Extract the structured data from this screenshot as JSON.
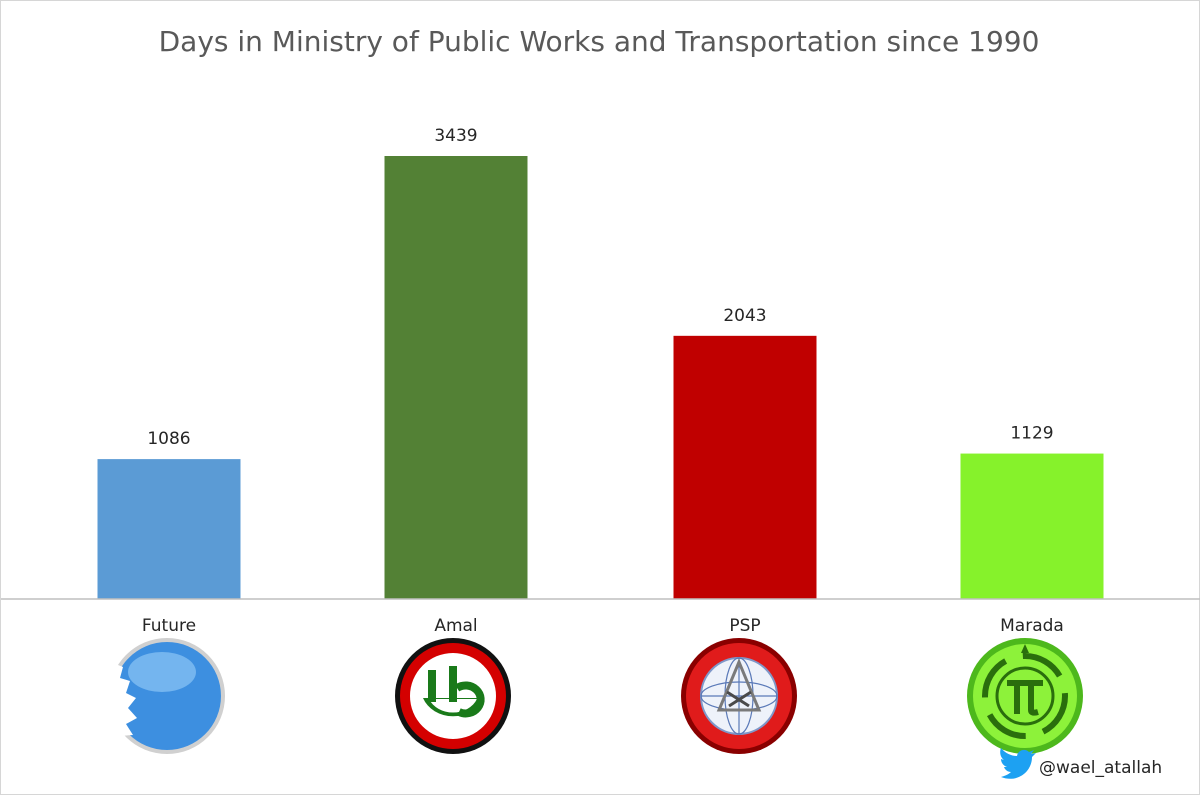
{
  "chart_data": {
    "type": "bar",
    "title": "Days in Ministry of Public Works and Transportation since 1990",
    "categories": [
      "Future",
      "Amal",
      "PSP",
      "Marada"
    ],
    "values": [
      1086,
      3439,
      2043,
      1129
    ],
    "colors": [
      "#5b9bd5",
      "#538135",
      "#c00000",
      "#86f22b"
    ],
    "ylim": [
      0,
      3500
    ],
    "grid": false,
    "show_data_labels": true
  },
  "logos": [
    {
      "name": "future-logo",
      "party": "Future"
    },
    {
      "name": "amal-logo",
      "party": "Amal"
    },
    {
      "name": "psp-logo",
      "party": "PSP"
    },
    {
      "name": "marada-logo",
      "party": "Marada"
    }
  ],
  "credit": {
    "handle": "@wael_atallah",
    "icon": "twitter-bird-icon",
    "icon_color": "#1da1f2"
  }
}
